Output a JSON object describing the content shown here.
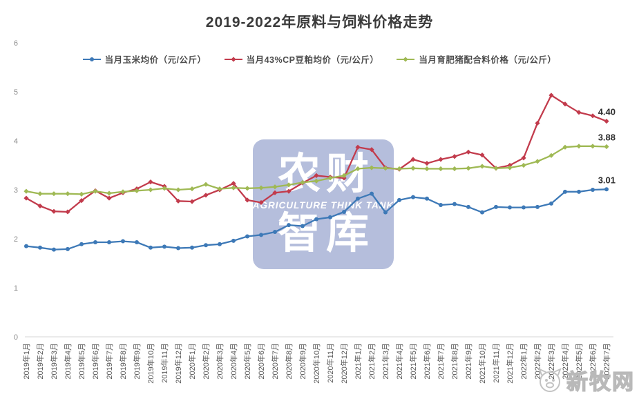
{
  "title": "2019-2022年原料与饲料价格走势",
  "watermark": {
    "line1": "农财",
    "line2": "AGRICULTURE  THINK  TANK",
    "line3": "智库"
  },
  "logo": {
    "text": "新牧网"
  },
  "chart_data": {
    "type": "line",
    "title": "2019-2022年原料与饲料价格走势",
    "xlabel": "",
    "ylabel": "",
    "ylim": [
      0,
      6
    ],
    "yticks": [
      0,
      1,
      2,
      3,
      4,
      5,
      6
    ],
    "grid": false,
    "legend_position": "top",
    "categories": [
      "2019年1月",
      "2019年2月",
      "2019年3月",
      "2019年4月",
      "2019年5月",
      "2019年6月",
      "2019年7月",
      "2019年8月",
      "2019年9月",
      "2019年10月",
      "2019年11月",
      "2019年12月",
      "2020年1月",
      "2020年2月",
      "2020年3月",
      "2020年4月",
      "2020年5月",
      "2020年6月",
      "2020年7月",
      "2020年8月",
      "2020年9月",
      "2020年10月",
      "2020年11月",
      "2020年12月",
      "2021年1月",
      "2021年2月",
      "2021年3月",
      "2021年4月",
      "2021年5月",
      "2021年6月",
      "2021年7月",
      "2021年8月",
      "2021年9月",
      "2021年10月",
      "2021年11月",
      "2021年12月",
      "2022年1月",
      "2022年2月",
      "2022年3月",
      "2022年4月",
      "2022年5月",
      "2022年6月",
      "2022年7月"
    ],
    "series": [
      {
        "name": "当月玉米均价（元/公斤）",
        "color": "#3d79b7",
        "marker": "circle",
        "end_label": "3.01",
        "values": [
          1.85,
          1.82,
          1.78,
          1.79,
          1.89,
          1.93,
          1.93,
          1.95,
          1.93,
          1.82,
          1.84,
          1.81,
          1.82,
          1.87,
          1.89,
          1.96,
          2.05,
          2.08,
          2.14,
          2.28,
          2.26,
          2.4,
          2.44,
          2.55,
          2.82,
          2.92,
          2.54,
          2.79,
          2.85,
          2.82,
          2.69,
          2.71,
          2.65,
          2.54,
          2.65,
          2.64,
          2.64,
          2.65,
          2.72,
          2.96,
          2.96,
          3.0,
          3.01
        ]
      },
      {
        "name": "当月43%CP豆粕均价（元/公斤）",
        "color": "#c23b4c",
        "marker": "diamond",
        "end_label": "4.40",
        "values": [
          2.83,
          2.67,
          2.56,
          2.55,
          2.78,
          2.98,
          2.83,
          2.94,
          3.02,
          3.16,
          3.07,
          2.77,
          2.76,
          2.89,
          3.0,
          3.13,
          2.79,
          2.74,
          2.94,
          2.97,
          3.14,
          3.29,
          3.26,
          3.24,
          3.87,
          3.82,
          3.45,
          3.42,
          3.62,
          3.54,
          3.62,
          3.68,
          3.77,
          3.71,
          3.44,
          3.5,
          3.65,
          4.36,
          4.93,
          4.75,
          4.58,
          4.51,
          4.4
        ]
      },
      {
        "name": "当月育肥猪配合料价格（元/公斤）",
        "color": "#9fb954",
        "marker": "diamond",
        "end_label": "3.88",
        "values": [
          2.97,
          2.92,
          2.92,
          2.92,
          2.91,
          2.97,
          2.93,
          2.96,
          2.98,
          3.0,
          3.03,
          3.0,
          3.02,
          3.11,
          3.02,
          3.04,
          3.03,
          3.04,
          3.06,
          3.1,
          3.15,
          3.18,
          3.24,
          3.29,
          3.43,
          3.45,
          3.44,
          3.43,
          3.44,
          3.43,
          3.43,
          3.43,
          3.44,
          3.48,
          3.44,
          3.45,
          3.5,
          3.58,
          3.7,
          3.87,
          3.89,
          3.89,
          3.88
        ]
      }
    ]
  }
}
